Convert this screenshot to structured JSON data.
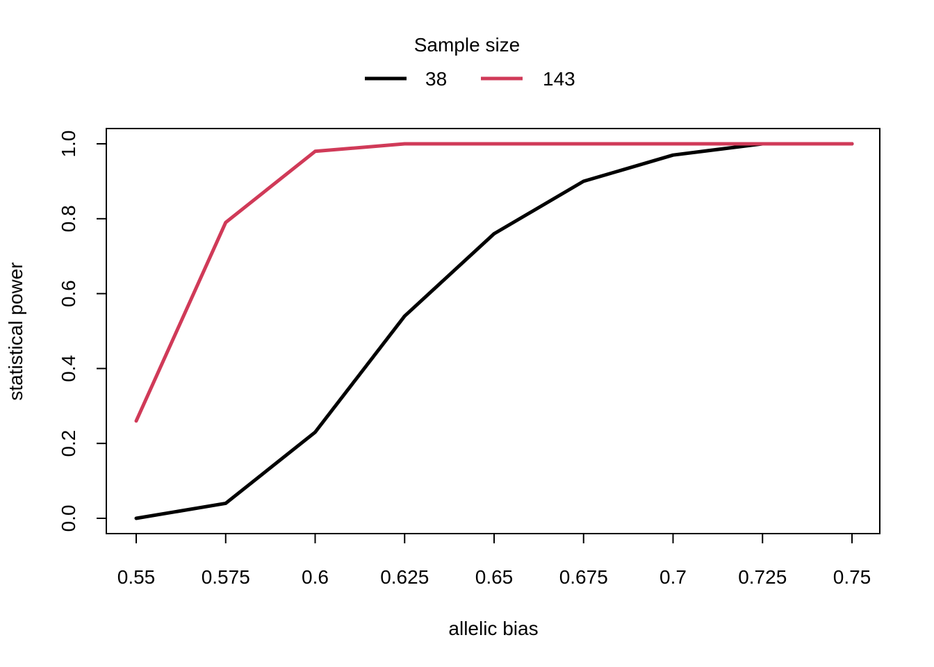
{
  "chart_data": {
    "type": "line",
    "title": "",
    "xlabel": "allelic bias",
    "ylabel": "statistical power",
    "x": [
      0.55,
      0.575,
      0.6,
      0.625,
      0.65,
      0.675,
      0.7,
      0.725,
      0.75
    ],
    "x_tick_labels": [
      "0.55",
      "0.575",
      "0.6",
      "0.625",
      "0.65",
      "0.675",
      "0.7",
      "0.725",
      "0.75"
    ],
    "y_ticks": [
      0.0,
      0.2,
      0.4,
      0.6,
      0.8,
      1.0
    ],
    "y_tick_labels": [
      "0.0",
      "0.2",
      "0.4",
      "0.6",
      "0.8",
      "1.0"
    ],
    "xlim": [
      0.55,
      0.75
    ],
    "ylim": [
      0,
      1
    ],
    "grid": false,
    "legend": {
      "title": "Sample size",
      "placement": "top-center, outside plot, horizontal"
    },
    "series": [
      {
        "name": "38",
        "color": "#000000",
        "values": [
          0.0,
          0.04,
          0.23,
          0.54,
          0.76,
          0.9,
          0.97,
          1.0,
          1.0
        ]
      },
      {
        "name": "143",
        "color": "#D03A58",
        "values": [
          0.26,
          0.79,
          0.98,
          1.0,
          1.0,
          1.0,
          1.0,
          1.0,
          1.0
        ]
      }
    ]
  }
}
